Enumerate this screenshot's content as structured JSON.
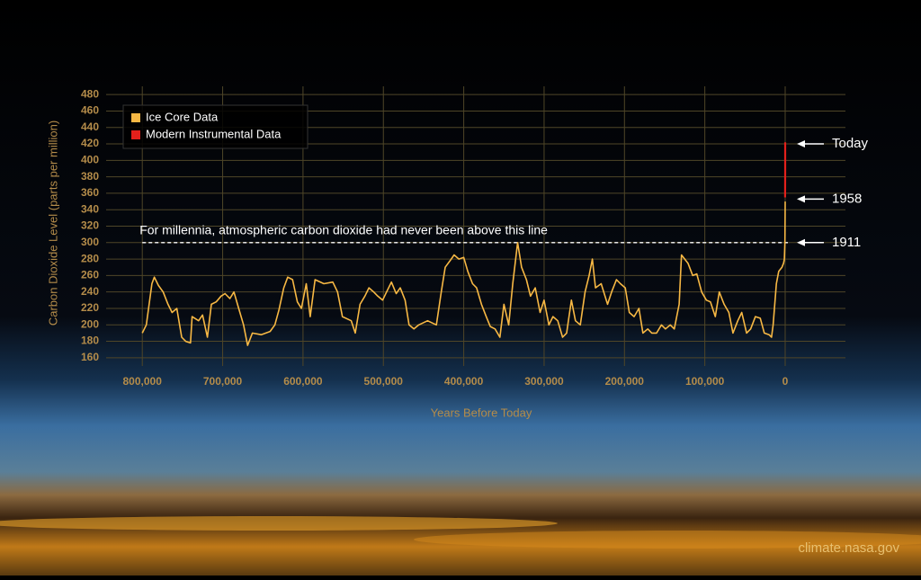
{
  "chart_data": {
    "type": "line",
    "xlabel": "Years Before Today",
    "ylabel": "Carbon Dioxide Level (parts per million)",
    "xlim": [
      845000,
      -75000
    ],
    "ylim": [
      150,
      490
    ],
    "xticks": [
      {
        "value": 800000,
        "label": "800,000"
      },
      {
        "value": 700000,
        "label": "700,000"
      },
      {
        "value": 600000,
        "label": "600,000"
      },
      {
        "value": 500000,
        "label": "500,000"
      },
      {
        "value": 400000,
        "label": "400,000"
      },
      {
        "value": 300000,
        "label": "300,000"
      },
      {
        "value": 200000,
        "label": "200,000"
      },
      {
        "value": 100000,
        "label": "100,000"
      },
      0
    ],
    "yticks": [
      160,
      180,
      200,
      220,
      240,
      260,
      280,
      300,
      320,
      340,
      360,
      380,
      400,
      420,
      440,
      460,
      480
    ],
    "grid": true,
    "legend": "upper left",
    "series": [
      {
        "name": "Ice Core Data",
        "color": "#f7b844",
        "x": [
          800000,
          795000,
          788000,
          785000,
          780000,
          774000,
          768000,
          763000,
          757000,
          751000,
          746000,
          740000,
          738000,
          730000,
          725000,
          719000,
          714000,
          708000,
          702000,
          697000,
          691000,
          686000,
          680000,
          674000,
          669000,
          663000,
          652000,
          641000,
          635000,
          630000,
          624000,
          619000,
          613000,
          607000,
          602000,
          596000,
          591000,
          585000,
          574000,
          563000,
          557000,
          551000,
          540000,
          535000,
          529000,
          523000,
          518000,
          512000,
          507000,
          501000,
          496000,
          490000,
          484000,
          479000,
          473000,
          468000,
          462000,
          456000,
          445000,
          434000,
          428000,
          423000,
          417000,
          412000,
          406000,
          400000,
          395000,
          389000,
          384000,
          378000,
          372000,
          367000,
          361000,
          355000,
          350000,
          344000,
          339000,
          333000,
          328000,
          322000,
          317000,
          311000,
          305000,
          300000,
          294000,
          289000,
          283000,
          277000,
          272000,
          266000,
          261000,
          255000,
          249000,
          244000,
          240000,
          236000,
          229000,
          221000,
          216000,
          210000,
          205000,
          199000,
          194000,
          188000,
          182000,
          177000,
          171000,
          166000,
          160000,
          154000,
          149000,
          143000,
          138000,
          132000,
          129000,
          121000,
          115000,
          110000,
          104000,
          98000,
          93000,
          87000,
          82000,
          76000,
          70000,
          65000,
          59000,
          54000,
          48000,
          43000,
          37000,
          31000,
          26000,
          20000,
          17000,
          15000,
          11000,
          8000,
          4000,
          2000,
          1000,
          300,
          100,
          0
        ],
        "values": [
          190,
          200,
          250,
          258,
          248,
          240,
          225,
          215,
          220,
          185,
          180,
          178,
          210,
          205,
          212,
          185,
          225,
          228,
          235,
          238,
          232,
          240,
          220,
          200,
          175,
          190,
          188,
          192,
          200,
          218,
          245,
          258,
          255,
          228,
          220,
          250,
          210,
          255,
          250,
          252,
          240,
          210,
          205,
          190,
          225,
          235,
          245,
          240,
          235,
          230,
          240,
          252,
          238,
          245,
          230,
          200,
          195,
          200,
          205,
          200,
          240,
          270,
          278,
          285,
          280,
          282,
          265,
          250,
          245,
          225,
          210,
          198,
          195,
          185,
          225,
          200,
          250,
          300,
          270,
          255,
          235,
          245,
          215,
          230,
          200,
          210,
          205,
          185,
          190,
          230,
          205,
          200,
          240,
          260,
          280,
          245,
          250,
          225,
          240,
          255,
          250,
          245,
          215,
          210,
          220,
          190,
          195,
          190,
          190,
          200,
          195,
          200,
          195,
          225,
          285,
          275,
          260,
          262,
          240,
          230,
          228,
          210,
          240,
          225,
          215,
          190,
          205,
          215,
          190,
          195,
          210,
          208,
          190,
          188,
          185,
          200,
          250,
          265,
          270,
          275,
          280,
          300,
          330,
          350
        ]
      },
      {
        "name": "Modern Instrumental Data",
        "color": "#e3201b",
        "x": [
          65,
          30,
          0
        ],
        "values": [
          355,
          385,
          422
        ]
      }
    ],
    "reference_line": {
      "value": 300,
      "label": "For millennia, atmospheric carbon dioxide had never been above this line"
    },
    "markers": [
      {
        "label": "Today",
        "value": 420
      },
      {
        "label": "1958",
        "value": 353
      },
      {
        "label": "1911",
        "value": 300
      }
    ],
    "source": "climate.nasa.gov"
  }
}
